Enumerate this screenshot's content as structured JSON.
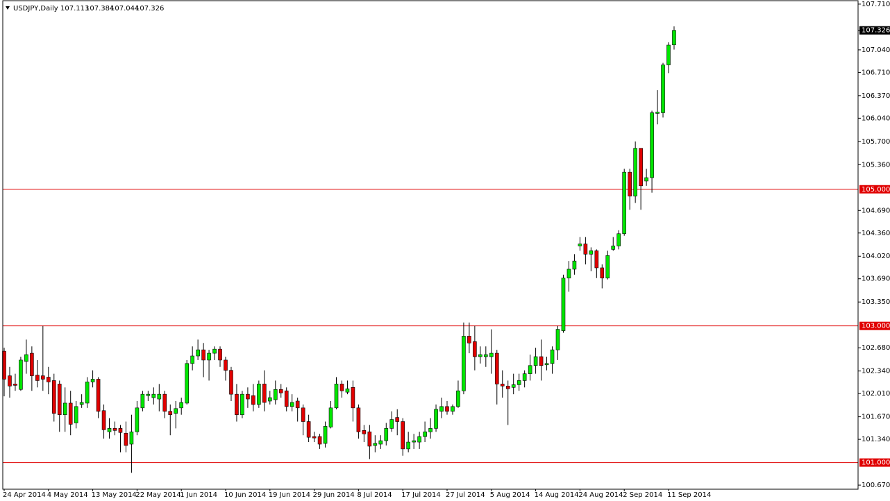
{
  "chart_data": {
    "type": "candlestick",
    "title": "USDJPY,Daily",
    "categories": [
      "24 Apr 2014",
      null,
      null,
      null,
      null,
      null,
      null,
      null,
      "4 May 2014",
      null,
      null,
      null,
      null,
      null,
      null,
      null,
      "13 May 2014",
      null,
      null,
      null,
      null,
      null,
      null,
      null,
      "22 May 2014",
      null,
      null,
      null,
      null,
      null,
      null,
      null,
      "1 Jun 2014",
      null,
      null,
      null,
      null,
      null,
      null,
      null,
      "10 Jun 2014",
      null,
      null,
      null,
      null,
      null,
      null,
      null,
      "19 Jun 2014",
      null,
      null,
      null,
      null,
      null,
      null,
      null,
      "29 Jun 2014",
      null,
      null,
      null,
      null,
      null,
      null,
      null,
      "8 Jul 2014",
      null,
      null,
      null,
      null,
      null,
      null,
      null,
      "17 Jul 2014",
      null,
      null,
      null,
      null,
      null,
      null,
      null,
      "27 Jul 2014",
      null,
      null,
      null,
      null,
      null,
      null,
      null,
      "5 Aug 2014",
      null,
      null,
      null,
      null,
      null,
      null,
      null,
      "14 Aug 2014",
      null,
      null,
      null,
      null,
      null,
      null,
      null,
      "24 Aug 2014",
      null,
      null,
      null,
      null,
      null,
      null,
      null,
      "2 Sep 2014",
      null,
      null,
      null,
      null,
      null,
      null,
      null,
      "11 Sep 2014",
      null
    ],
    "open": [
      102.63,
      102.27,
      102.15,
      102.07,
      102.48,
      102.6,
      102.28,
      102.27,
      102.25,
      102.2,
      102.15,
      101.7,
      101.87,
      101.58,
      101.85,
      101.87,
      102.18,
      102.22,
      101.76,
      101.45,
      101.5,
      101.5,
      101.43,
      101.27,
      101.45,
      101.8,
      101.98,
      101.95,
      101.93,
      102.0,
      101.75,
      101.72,
      101.8,
      101.87,
      102.45,
      102.56,
      102.65,
      102.5,
      102.6,
      102.66,
      102.5,
      102.35,
      102.0,
      101.7,
      102.0,
      101.98,
      101.85,
      102.15,
      101.9,
      101.92,
      102.07,
      102.05,
      101.82,
      101.9,
      101.8,
      101.6,
      101.38,
      101.38,
      101.28,
      101.52,
      101.8,
      102.15,
      102.03,
      102.1,
      101.8,
      101.47,
      101.45,
      101.25,
      101.27,
      101.32,
      101.5,
      101.66,
      101.6,
      101.2,
      101.3,
      101.3,
      101.38,
      101.45,
      101.5,
      101.75,
      101.82,
      101.75,
      101.82,
      102.05,
      102.85,
      102.77,
      102.55,
      102.55,
      102.55,
      102.6,
      102.15,
      102.12,
      102.1,
      102.14,
      102.2,
      102.3,
      102.42,
      102.55,
      102.43,
      102.45,
      102.65,
      102.93,
      103.7,
      103.83,
      104.17,
      104.2,
      104.05,
      104.1,
      103.85,
      103.7,
      104.12,
      104.17,
      104.35,
      105.25,
      104.9,
      105.6,
      105.12,
      105.17,
      106.11,
      106.12,
      106.82,
      107.113
    ],
    "high": [
      102.68,
      102.4,
      102.3,
      102.55,
      102.8,
      102.7,
      102.5,
      103.0,
      102.4,
      102.3,
      102.2,
      102.1,
      102.05,
      101.9,
      102.0,
      102.25,
      102.35,
      102.25,
      101.85,
      101.65,
      101.6,
      101.55,
      101.6,
      101.7,
      101.9,
      102.05,
      102.05,
      102.1,
      102.15,
      102.05,
      101.85,
      101.9,
      101.95,
      102.5,
      102.7,
      102.8,
      102.75,
      102.65,
      102.7,
      102.7,
      102.55,
      102.4,
      102.15,
      102.05,
      102.1,
      102.15,
      102.2,
      102.35,
      102.05,
      102.2,
      102.15,
      102.1,
      102.0,
      101.95,
      101.85,
      101.7,
      101.45,
      101.42,
      101.6,
      101.9,
      102.25,
      102.2,
      102.2,
      102.2,
      101.85,
      101.55,
      101.55,
      101.4,
      101.4,
      101.58,
      101.75,
      101.78,
      101.65,
      101.45,
      101.42,
      101.45,
      101.6,
      101.65,
      101.85,
      101.95,
      101.9,
      101.85,
      102.2,
      103.05,
      103.05,
      103.0,
      102.7,
      102.7,
      102.95,
      102.65,
      102.35,
      102.2,
      102.3,
      102.3,
      102.35,
      102.58,
      102.68,
      102.8,
      102.55,
      102.7,
      103.0,
      103.75,
      103.95,
      104.05,
      104.3,
      104.3,
      104.15,
      104.12,
      103.9,
      104.1,
      104.3,
      104.4,
      105.3,
      105.3,
      105.7,
      105.6,
      105.3,
      106.15,
      106.45,
      106.85,
      107.15,
      107.384
    ],
    "low": [
      101.97,
      101.95,
      102.05,
      102.05,
      102.3,
      102.05,
      102.1,
      102.05,
      102.0,
      101.6,
      101.45,
      101.45,
      101.4,
      101.5,
      101.8,
      101.8,
      102.1,
      101.65,
      101.35,
      101.35,
      101.4,
      101.15,
      101.15,
      100.85,
      101.4,
      101.75,
      101.9,
      101.85,
      101.75,
      101.65,
      101.4,
      101.5,
      101.7,
      101.85,
      102.35,
      102.5,
      102.25,
      102.2,
      102.5,
      102.4,
      102.2,
      101.9,
      101.6,
      101.65,
      101.8,
      101.75,
      101.8,
      101.75,
      101.85,
      101.85,
      101.95,
      101.75,
      101.75,
      101.6,
      101.4,
      101.3,
      101.3,
      101.2,
      101.22,
      101.5,
      101.78,
      101.95,
      102.0,
      101.6,
      101.35,
      101.3,
      101.05,
      101.15,
      101.2,
      101.25,
      101.45,
      101.4,
      101.1,
      101.15,
      101.2,
      101.2,
      101.3,
      101.35,
      101.45,
      101.65,
      101.7,
      101.7,
      101.8,
      102.0,
      102.6,
      102.35,
      102.45,
      102.4,
      102.3,
      101.85,
      101.95,
      101.55,
      102.0,
      102.05,
      102.1,
      102.2,
      102.3,
      102.2,
      102.35,
      102.3,
      102.5,
      102.9,
      103.5,
      103.75,
      104.1,
      103.9,
      103.8,
      103.7,
      103.55,
      103.68,
      104.1,
      104.12,
      104.32,
      104.7,
      104.8,
      104.7,
      105.05,
      104.95,
      105.95,
      106.05,
      106.7,
      107.044
    ],
    "close": [
      102.22,
      102.12,
      102.13,
      102.5,
      102.58,
      102.27,
      102.2,
      102.22,
      102.18,
      101.72,
      101.7,
      101.87,
      101.56,
      101.82,
      101.88,
      102.18,
      102.22,
      101.75,
      101.48,
      101.5,
      101.47,
      101.44,
      101.25,
      101.45,
      101.8,
      102.0,
      102.0,
      102.0,
      102.0,
      101.75,
      101.7,
      101.79,
      101.88,
      102.45,
      102.56,
      102.65,
      102.5,
      102.6,
      102.66,
      102.5,
      102.35,
      102.0,
      101.7,
      102.0,
      101.93,
      101.85,
      102.15,
      101.88,
      101.95,
      102.07,
      102.02,
      101.82,
      101.88,
      101.8,
      101.6,
      101.37,
      101.36,
      101.27,
      101.53,
      101.8,
      102.15,
      102.05,
      102.08,
      101.8,
      101.45,
      101.42,
      101.24,
      101.28,
      101.32,
      101.5,
      101.63,
      101.6,
      101.2,
      101.3,
      101.32,
      101.38,
      101.45,
      101.5,
      101.78,
      101.82,
      101.75,
      101.82,
      102.05,
      102.85,
      102.75,
      102.55,
      102.58,
      102.58,
      102.6,
      102.15,
      102.12,
      102.08,
      102.14,
      102.2,
      102.3,
      102.42,
      102.55,
      102.42,
      102.45,
      102.65,
      102.95,
      103.7,
      103.83,
      103.95,
      104.2,
      104.05,
      104.1,
      103.85,
      103.7,
      104.03,
      104.17,
      104.35,
      105.25,
      104.9,
      105.6,
      105.05,
      105.17,
      106.12,
      106.13,
      106.82,
      107.11,
      107.326
    ],
    "up_color": "#00e600",
    "down_color": "#e00000",
    "ylim": [
      100.61,
      107.76
    ],
    "yticks": [
      {
        "value": 107.71,
        "label": "107.710"
      },
      {
        "value": 107.04,
        "label": "107.040"
      },
      {
        "value": 106.71,
        "label": "106.710"
      },
      {
        "value": 106.37,
        "label": "106.370"
      },
      {
        "value": 106.04,
        "label": "106.040"
      },
      {
        "value": 105.7,
        "label": "105.700"
      },
      {
        "value": 105.36,
        "label": "105.360"
      },
      {
        "value": 104.69,
        "label": "104.690"
      },
      {
        "value": 104.36,
        "label": "104.360"
      },
      {
        "value": 104.02,
        "label": "104.020"
      },
      {
        "value": 103.69,
        "label": "103.690"
      },
      {
        "value": 103.35,
        "label": "103.350"
      },
      {
        "value": 102.68,
        "label": "102.680"
      },
      {
        "value": 102.34,
        "label": "102.340"
      },
      {
        "value": 102.01,
        "label": "102.010"
      },
      {
        "value": 101.67,
        "label": "101.670"
      },
      {
        "value": 101.34,
        "label": "101.340"
      },
      {
        "value": 100.67,
        "label": "100.670"
      }
    ],
    "hlines": [
      {
        "value": 105,
        "label": "105.000"
      },
      {
        "value": 103,
        "label": "103.000"
      },
      {
        "value": 101,
        "label": "101.000"
      }
    ],
    "hline_color": "#e00000"
  }
}
